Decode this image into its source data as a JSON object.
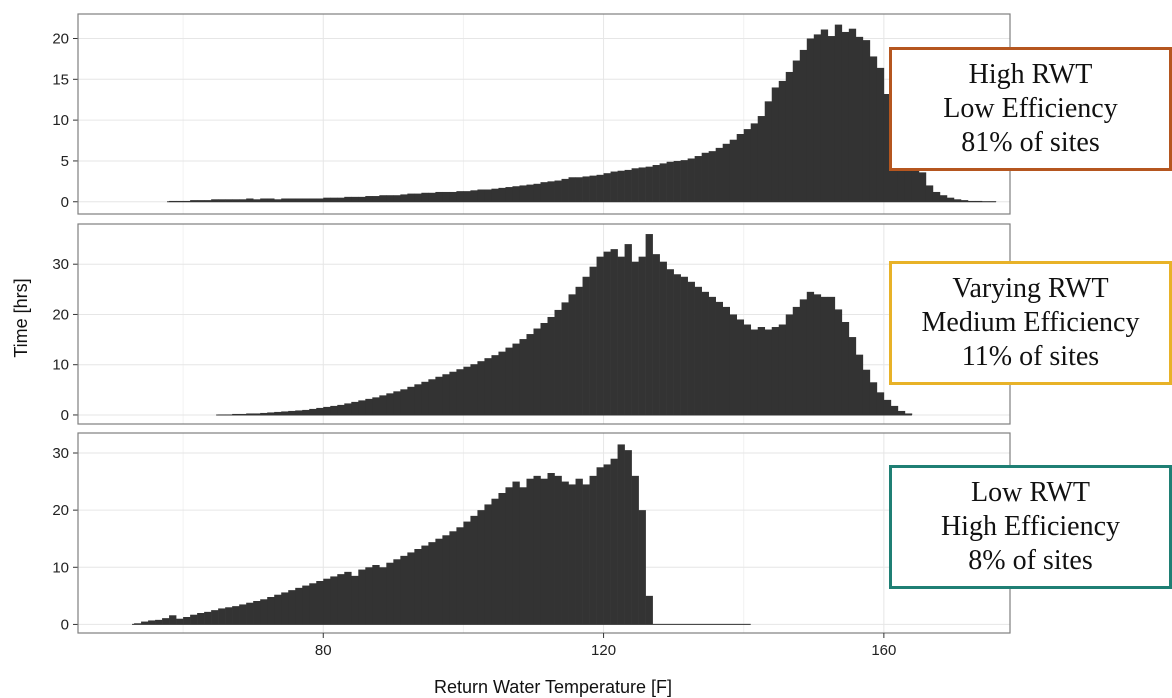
{
  "chart_data": {
    "type": "bar",
    "xlabel": "Return Water Temperature [F]",
    "ylabel": "Time [hrs]",
    "xlim": [
      45,
      178
    ],
    "x_ticks": [
      80,
      120,
      160
    ],
    "bin_start": 50,
    "bin_width": 1,
    "grid": true,
    "bar_color": "#333333",
    "panels": [
      {
        "name": "High RWT",
        "ylim": [
          -1.5,
          23
        ],
        "y_ticks": [
          0,
          5,
          10,
          15,
          20
        ],
        "values": [
          0,
          0,
          0,
          0,
          0,
          0,
          0,
          0,
          0.1,
          0.1,
          0.1,
          0.2,
          0.2,
          0.2,
          0.3,
          0.3,
          0.3,
          0.3,
          0.3,
          0.4,
          0.3,
          0.4,
          0.4,
          0.3,
          0.4,
          0.4,
          0.4,
          0.4,
          0.4,
          0.4,
          0.5,
          0.5,
          0.5,
          0.6,
          0.6,
          0.6,
          0.7,
          0.7,
          0.8,
          0.8,
          0.8,
          0.9,
          1.0,
          1.0,
          1.1,
          1.1,
          1.2,
          1.2,
          1.2,
          1.3,
          1.3,
          1.4,
          1.5,
          1.5,
          1.6,
          1.7,
          1.8,
          1.9,
          2.0,
          2.1,
          2.2,
          2.4,
          2.5,
          2.6,
          2.8,
          3.0,
          3.0,
          3.1,
          3.2,
          3.3,
          3.5,
          3.7,
          3.8,
          3.9,
          4.1,
          4.2,
          4.3,
          4.5,
          4.7,
          4.9,
          5.0,
          5.1,
          5.3,
          5.6,
          6.0,
          6.2,
          6.6,
          7.1,
          7.6,
          8.3,
          8.9,
          9.6,
          10.5,
          12.3,
          14.0,
          14.8,
          15.9,
          17.3,
          18.6,
          20.0,
          20.5,
          21.1,
          20.3,
          21.7,
          20.8,
          21.2,
          20.2,
          19.8,
          17.8,
          16.4,
          13.2,
          11.4,
          9.5,
          6.9,
          5.3,
          3.6,
          2.0,
          1.2,
          0.8,
          0.5,
          0.3,
          0.2,
          0.1,
          0.1,
          0.05,
          0.05,
          0,
          0
        ]
      },
      {
        "name": "Varying RWT",
        "ylim": [
          -1.8,
          38
        ],
        "y_ticks": [
          0,
          10,
          20,
          30
        ],
        "values": [
          0,
          0,
          0,
          0,
          0,
          0,
          0,
          0,
          0,
          0,
          0,
          0,
          0,
          0,
          0,
          0.1,
          0.1,
          0.2,
          0.2,
          0.3,
          0.3,
          0.4,
          0.5,
          0.6,
          0.7,
          0.8,
          0.9,
          1.0,
          1.2,
          1.4,
          1.6,
          1.8,
          2.0,
          2.3,
          2.6,
          2.9,
          3.2,
          3.5,
          3.9,
          4.3,
          4.7,
          5.1,
          5.6,
          6.1,
          6.6,
          7.1,
          7.6,
          8.1,
          8.6,
          9.1,
          9.6,
          10.1,
          10.7,
          11.3,
          11.9,
          12.6,
          13.4,
          14.2,
          15.1,
          16.1,
          17.2,
          18.3,
          19.5,
          20.9,
          22.4,
          24.0,
          25.5,
          27.5,
          29.5,
          31.5,
          32.5,
          33.0,
          31.5,
          34.0,
          30.5,
          31.5,
          36.0,
          32.0,
          30.5,
          29.0,
          28.0,
          27.5,
          26.5,
          25.5,
          24.5,
          23.5,
          22.5,
          21.5,
          20.0,
          19.0,
          18.0,
          17.0,
          17.5,
          17.0,
          17.5,
          18.0,
          20.0,
          21.5,
          23.0,
          24.5,
          24.0,
          23.5,
          23.5,
          21.0,
          18.5,
          15.5,
          12.0,
          9.0,
          6.5,
          4.5,
          3.0,
          1.8,
          0.8,
          0.3
        ]
      },
      {
        "name": "Low RWT",
        "ylim": [
          -1.5,
          33.5
        ],
        "y_ticks": [
          0,
          10,
          20,
          30
        ],
        "values": [
          0,
          0,
          0,
          0.2,
          0.5,
          0.7,
          0.8,
          1.1,
          1.6,
          1.0,
          1.3,
          1.7,
          2.0,
          2.2,
          2.5,
          2.8,
          3.0,
          3.2,
          3.5,
          3.8,
          4.1,
          4.4,
          4.8,
          5.2,
          5.6,
          6.0,
          6.4,
          6.8,
          7.2,
          7.6,
          8.0,
          8.4,
          8.8,
          9.2,
          8.5,
          9.6,
          10.0,
          10.4,
          10.0,
          10.8,
          11.4,
          12.0,
          12.6,
          13.2,
          13.8,
          14.4,
          15.0,
          15.6,
          16.3,
          17.0,
          18.0,
          19.0,
          20.0,
          21.0,
          22.0,
          23.0,
          24.0,
          25.0,
          24.0,
          25.5,
          26.0,
          25.5,
          26.5,
          26.0,
          25.0,
          24.5,
          25.5,
          24.5,
          26.0,
          27.5,
          28.0,
          29.0,
          31.5,
          30.5,
          26.0,
          20.0,
          5.0,
          0,
          0,
          0,
          0,
          0,
          0,
          0,
          0,
          0,
          0,
          0,
          0,
          0
        ]
      }
    ]
  },
  "annotations": [
    {
      "lines": [
        "High RWT",
        "Low Efficiency",
        "81% of sites"
      ],
      "border_color": "#b5561f"
    },
    {
      "lines": [
        "Varying RWT",
        "Medium Efficiency",
        "11% of sites"
      ],
      "border_color": "#e8b228"
    },
    {
      "lines": [
        "Low RWT",
        "High Efficiency",
        "8% of sites"
      ],
      "border_color": "#1f7f74"
    }
  ]
}
